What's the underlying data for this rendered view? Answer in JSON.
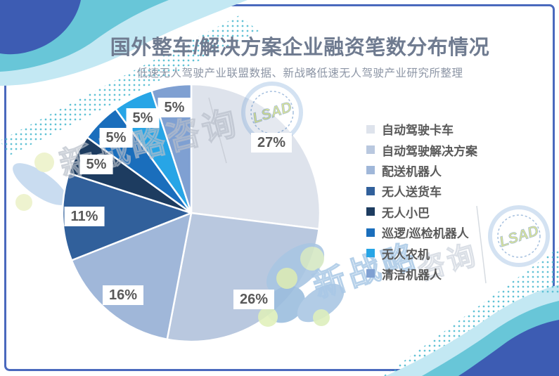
{
  "page": {
    "title": "国外整车/解决方案企业融资笔数分布情况",
    "subtitle": "低速无人驾驶产业联盟数据、新战略低速无人驾驶产业研究所整理"
  },
  "watermarks": {
    "badge_text": "LSAD",
    "stamp_text_1": "新战略咨询",
    "stamp_text_2": "新战略",
    "stamp_text_3": "咨询"
  },
  "colors": {
    "frame_border": "#4a69bd",
    "title_text": "#6f7b90",
    "subtitle_text": "#8c95a5",
    "label_text": "#595959",
    "wave_dark_blue": "#3d5cb3",
    "wave_teal": "#68c6d8",
    "wave_light_blue": "#c3e8f3",
    "dot_teal": "#45b7cd"
  },
  "chart_data": {
    "type": "pie",
    "title": "国外整车/解决方案企业融资笔数分布情况",
    "start_angle_deg": 0,
    "direction": "clockwise",
    "legend_position": "right",
    "total": 100,
    "series": [
      {
        "label": "自动驾驶卡车",
        "value": 27,
        "pct_label": "27%",
        "color": "#dee3ec"
      },
      {
        "label": "自动驾驶解决方案",
        "value": 26,
        "pct_label": "26%",
        "color": "#b9c8df"
      },
      {
        "label": "配送机器人",
        "value": 16,
        "pct_label": "16%",
        "color": "#a0b7d9"
      },
      {
        "label": "无人送货车",
        "value": 11,
        "pct_label": "11%",
        "color": "#31609b"
      },
      {
        "label": "无人小巴",
        "value": 5,
        "pct_label": "5%",
        "color": "#1d3c60"
      },
      {
        "label": "巡逻/巡检机器人",
        "value": 5,
        "pct_label": "5%",
        "color": "#1a6ebc"
      },
      {
        "label": "无人农机",
        "value": 5,
        "pct_label": "5%",
        "color": "#27a5e6"
      },
      {
        "label": "清洁机器人",
        "value": 5,
        "pct_label": "5%",
        "color": "#7fa0d2"
      }
    ]
  }
}
